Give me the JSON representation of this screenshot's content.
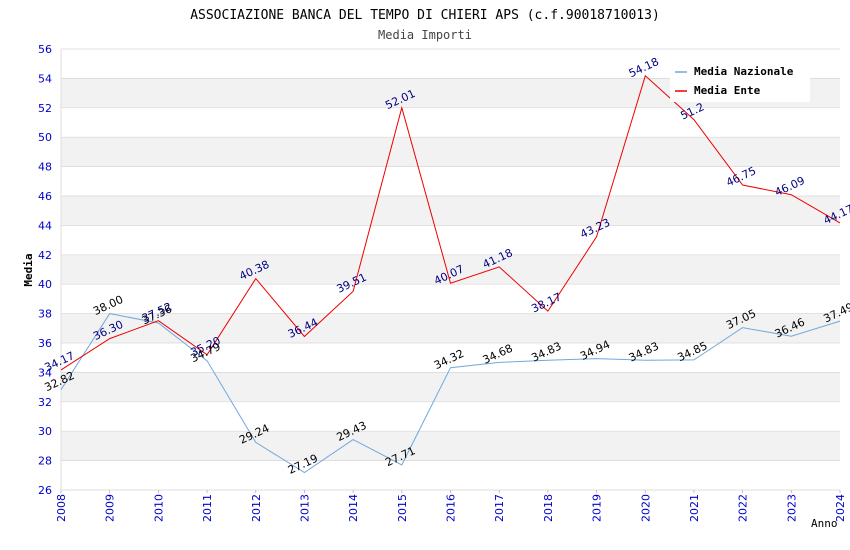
{
  "chart_data": {
    "type": "line",
    "title": "ASSOCIAZIONE BANCA DEL TEMPO DI CHIERI APS (c.f.90018710013)",
    "subtitle": "Media Importi",
    "xlabel": "Anno",
    "ylabel": "Media",
    "x": [
      "2008",
      "2009",
      "2010",
      "2011",
      "2012",
      "2013",
      "2014",
      "2015",
      "2016",
      "2017",
      "2018",
      "2019",
      "2020",
      "2021",
      "2022",
      "2023",
      "2024"
    ],
    "ylim": [
      26,
      56
    ],
    "yticks": [
      "26",
      "28",
      "30",
      "32",
      "34",
      "36",
      "38",
      "40",
      "42",
      "44",
      "46",
      "48",
      "50",
      "52",
      "54",
      "56"
    ],
    "grid": "horizontal alternating bands",
    "legend_position": "top-right",
    "series": [
      {
        "name": "Media Nazionale",
        "color": "#6fa8dc",
        "label_color": "#000000",
        "values": [
          32.82,
          38.0,
          37.36,
          34.79,
          29.24,
          27.19,
          29.43,
          27.71,
          34.32,
          34.68,
          34.83,
          34.94,
          34.83,
          34.85,
          37.05,
          36.46,
          37.49
        ],
        "labels": [
          "32.82",
          "38.00",
          "37.36",
          "34.79",
          "29.24",
          "27.19",
          "29.43",
          "27.71",
          "34.32",
          "34.68",
          "34.83",
          "34.94",
          "34.83",
          "34.85",
          "37.05",
          "36.46",
          "37.49"
        ]
      },
      {
        "name": "Media Ente",
        "color": "#ee0000",
        "label_color": "#000080",
        "values": [
          34.17,
          36.3,
          37.52,
          35.2,
          40.38,
          36.44,
          39.51,
          52.01,
          40.07,
          41.18,
          38.17,
          43.23,
          54.18,
          51.2,
          46.75,
          46.09,
          44.17
        ],
        "labels": [
          "34.17",
          "36.30",
          "37.52",
          "35.20",
          "40.38",
          "36.44",
          "39.51",
          "52.01",
          "40.07",
          "41.18",
          "38.17",
          "43.23",
          "54.18",
          "51.2",
          "46.75",
          "46.09",
          "44.17"
        ]
      }
    ],
    "colors": {
      "band": "#f2f2f2",
      "gridline": "#d8d8d8",
      "axis_tick_text": "#0000cc",
      "title_text": "#000000",
      "subtitle_text": "#444444"
    }
  }
}
